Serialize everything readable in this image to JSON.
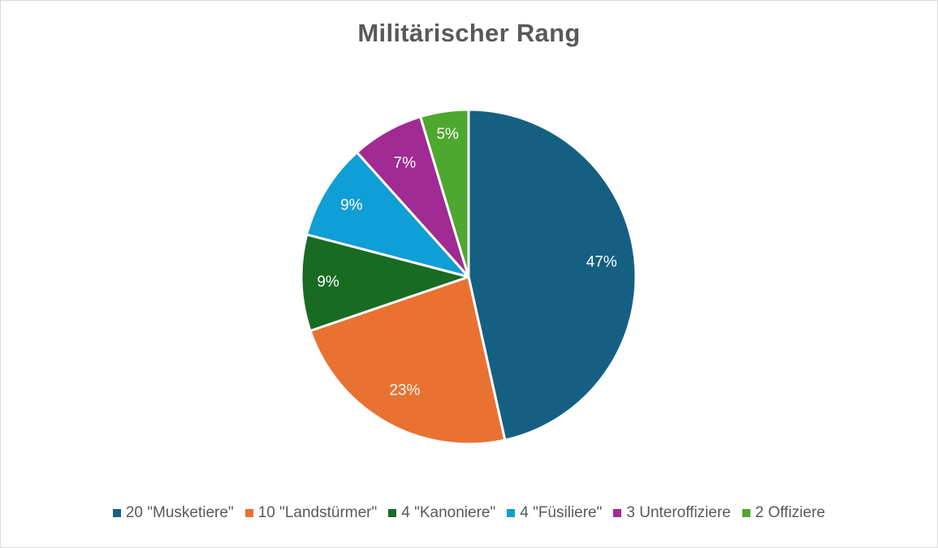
{
  "chart_data": {
    "type": "pie",
    "title": "Militärischer Rang",
    "categories": [
      "20 \"Musketiere\"",
      "10 \"Landstürmer\"",
      "4 \"Kanoniere\"",
      "4 \"Füsiliere\"",
      "3 Unteroffiziere",
      "2 Offiziere"
    ],
    "values": [
      20,
      10,
      4,
      4,
      3,
      2
    ],
    "data_labels": [
      "47%",
      "23%",
      "9%",
      "9%",
      "7%",
      "5%"
    ],
    "colors": [
      "#156082",
      "#E97132",
      "#196B24",
      "#0F9ED5",
      "#A02B93",
      "#4EA72E"
    ],
    "legend_position": "bottom",
    "label_color": "#ffffff"
  }
}
